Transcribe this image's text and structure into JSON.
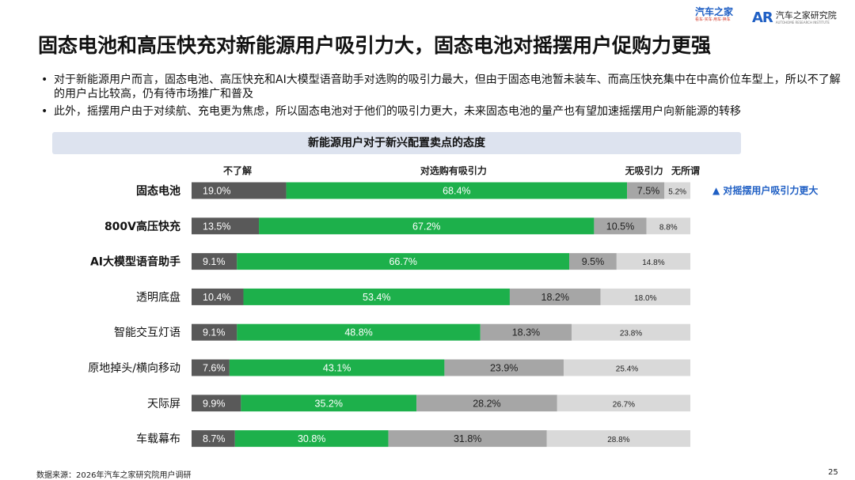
{
  "header": {
    "logo_brand": "汽车之家",
    "logo_brand_sub": "看车·买车·用车·换车",
    "logo_institute_mark": "AR",
    "logo_institute_name": "汽车之家研究院",
    "logo_institute_sub": "AUTOHOME RESEARCH INSTITUTE"
  },
  "title": "固态电池和高压快充对新能源用户吸引力大，固态电池对摇摆用户促购力更强",
  "bullets": [
    "对于新能源用户而言，固态电池、高压快充和AI大模型语音助手对选购的吸引力最大，但由于固态电池暂未装车、而高压快充集中在中高价位车型上，所以不了解的用户占比较高，仍有待市场推广和普及",
    "此外，摇摆用户由于对续航、充电更为焦虑，所以固态电池对于他们的吸引力更大，未来固态电池的量产也有望加速摇摆用户向新能源的转移"
  ],
  "chart_data": {
    "type": "bar",
    "orientation": "horizontal",
    "stacked": true,
    "title": "新能源用户对于新兴配置卖点的态度",
    "categories": [
      "固态电池",
      "800V高压快充",
      "AI大模型语音助手",
      "透明底盘",
      "智能交互灯语",
      "原地掉头/横向移动",
      "天际屏",
      "车载幕布"
    ],
    "series": [
      {
        "name": "不了解",
        "color": "#595959",
        "values": [
          19.0,
          13.5,
          9.1,
          10.4,
          9.1,
          7.6,
          9.9,
          8.7
        ]
      },
      {
        "name": "对选购有吸引力",
        "color": "#1db04b",
        "values": [
          68.4,
          67.2,
          66.7,
          53.4,
          48.8,
          43.1,
          35.2,
          30.8
        ]
      },
      {
        "name": "无吸引力",
        "color": "#a6a6a6",
        "values": [
          7.5,
          10.5,
          9.5,
          18.2,
          18.3,
          23.9,
          28.2,
          31.8
        ]
      },
      {
        "name": "无所谓",
        "color": "#d9d9d9",
        "values": [
          5.2,
          8.8,
          14.8,
          18.0,
          23.8,
          25.4,
          26.7,
          28.8
        ]
      }
    ],
    "labels": [
      [
        "19.0%",
        "68.4%",
        "7.5%",
        "5.2%"
      ],
      [
        "13.5%",
        "67.2%",
        "10.5%",
        "8.8%"
      ],
      [
        "9.1%",
        "66.7%",
        "9.5%",
        "14.8%"
      ],
      [
        "10.4%",
        "53.4%",
        "18.2%",
        "18.0%"
      ],
      [
        "9.1%",
        "48.8%",
        "18.3%",
        "23.8%"
      ],
      [
        "7.6%",
        "43.1%",
        "23.9%",
        "25.4%"
      ],
      [
        "9.9%",
        "35.2%",
        "28.2%",
        "26.7%"
      ],
      [
        "8.7%",
        "30.8%",
        "31.8%",
        "28.8%"
      ]
    ],
    "xlim": [
      0,
      100
    ],
    "annotation": "▲ 对摇摆用户吸引力更大",
    "bold_categories": [
      0,
      1,
      2
    ]
  },
  "footer": {
    "source": "数据来源：2026年汽车之家研究院用户调研",
    "page": "25"
  }
}
